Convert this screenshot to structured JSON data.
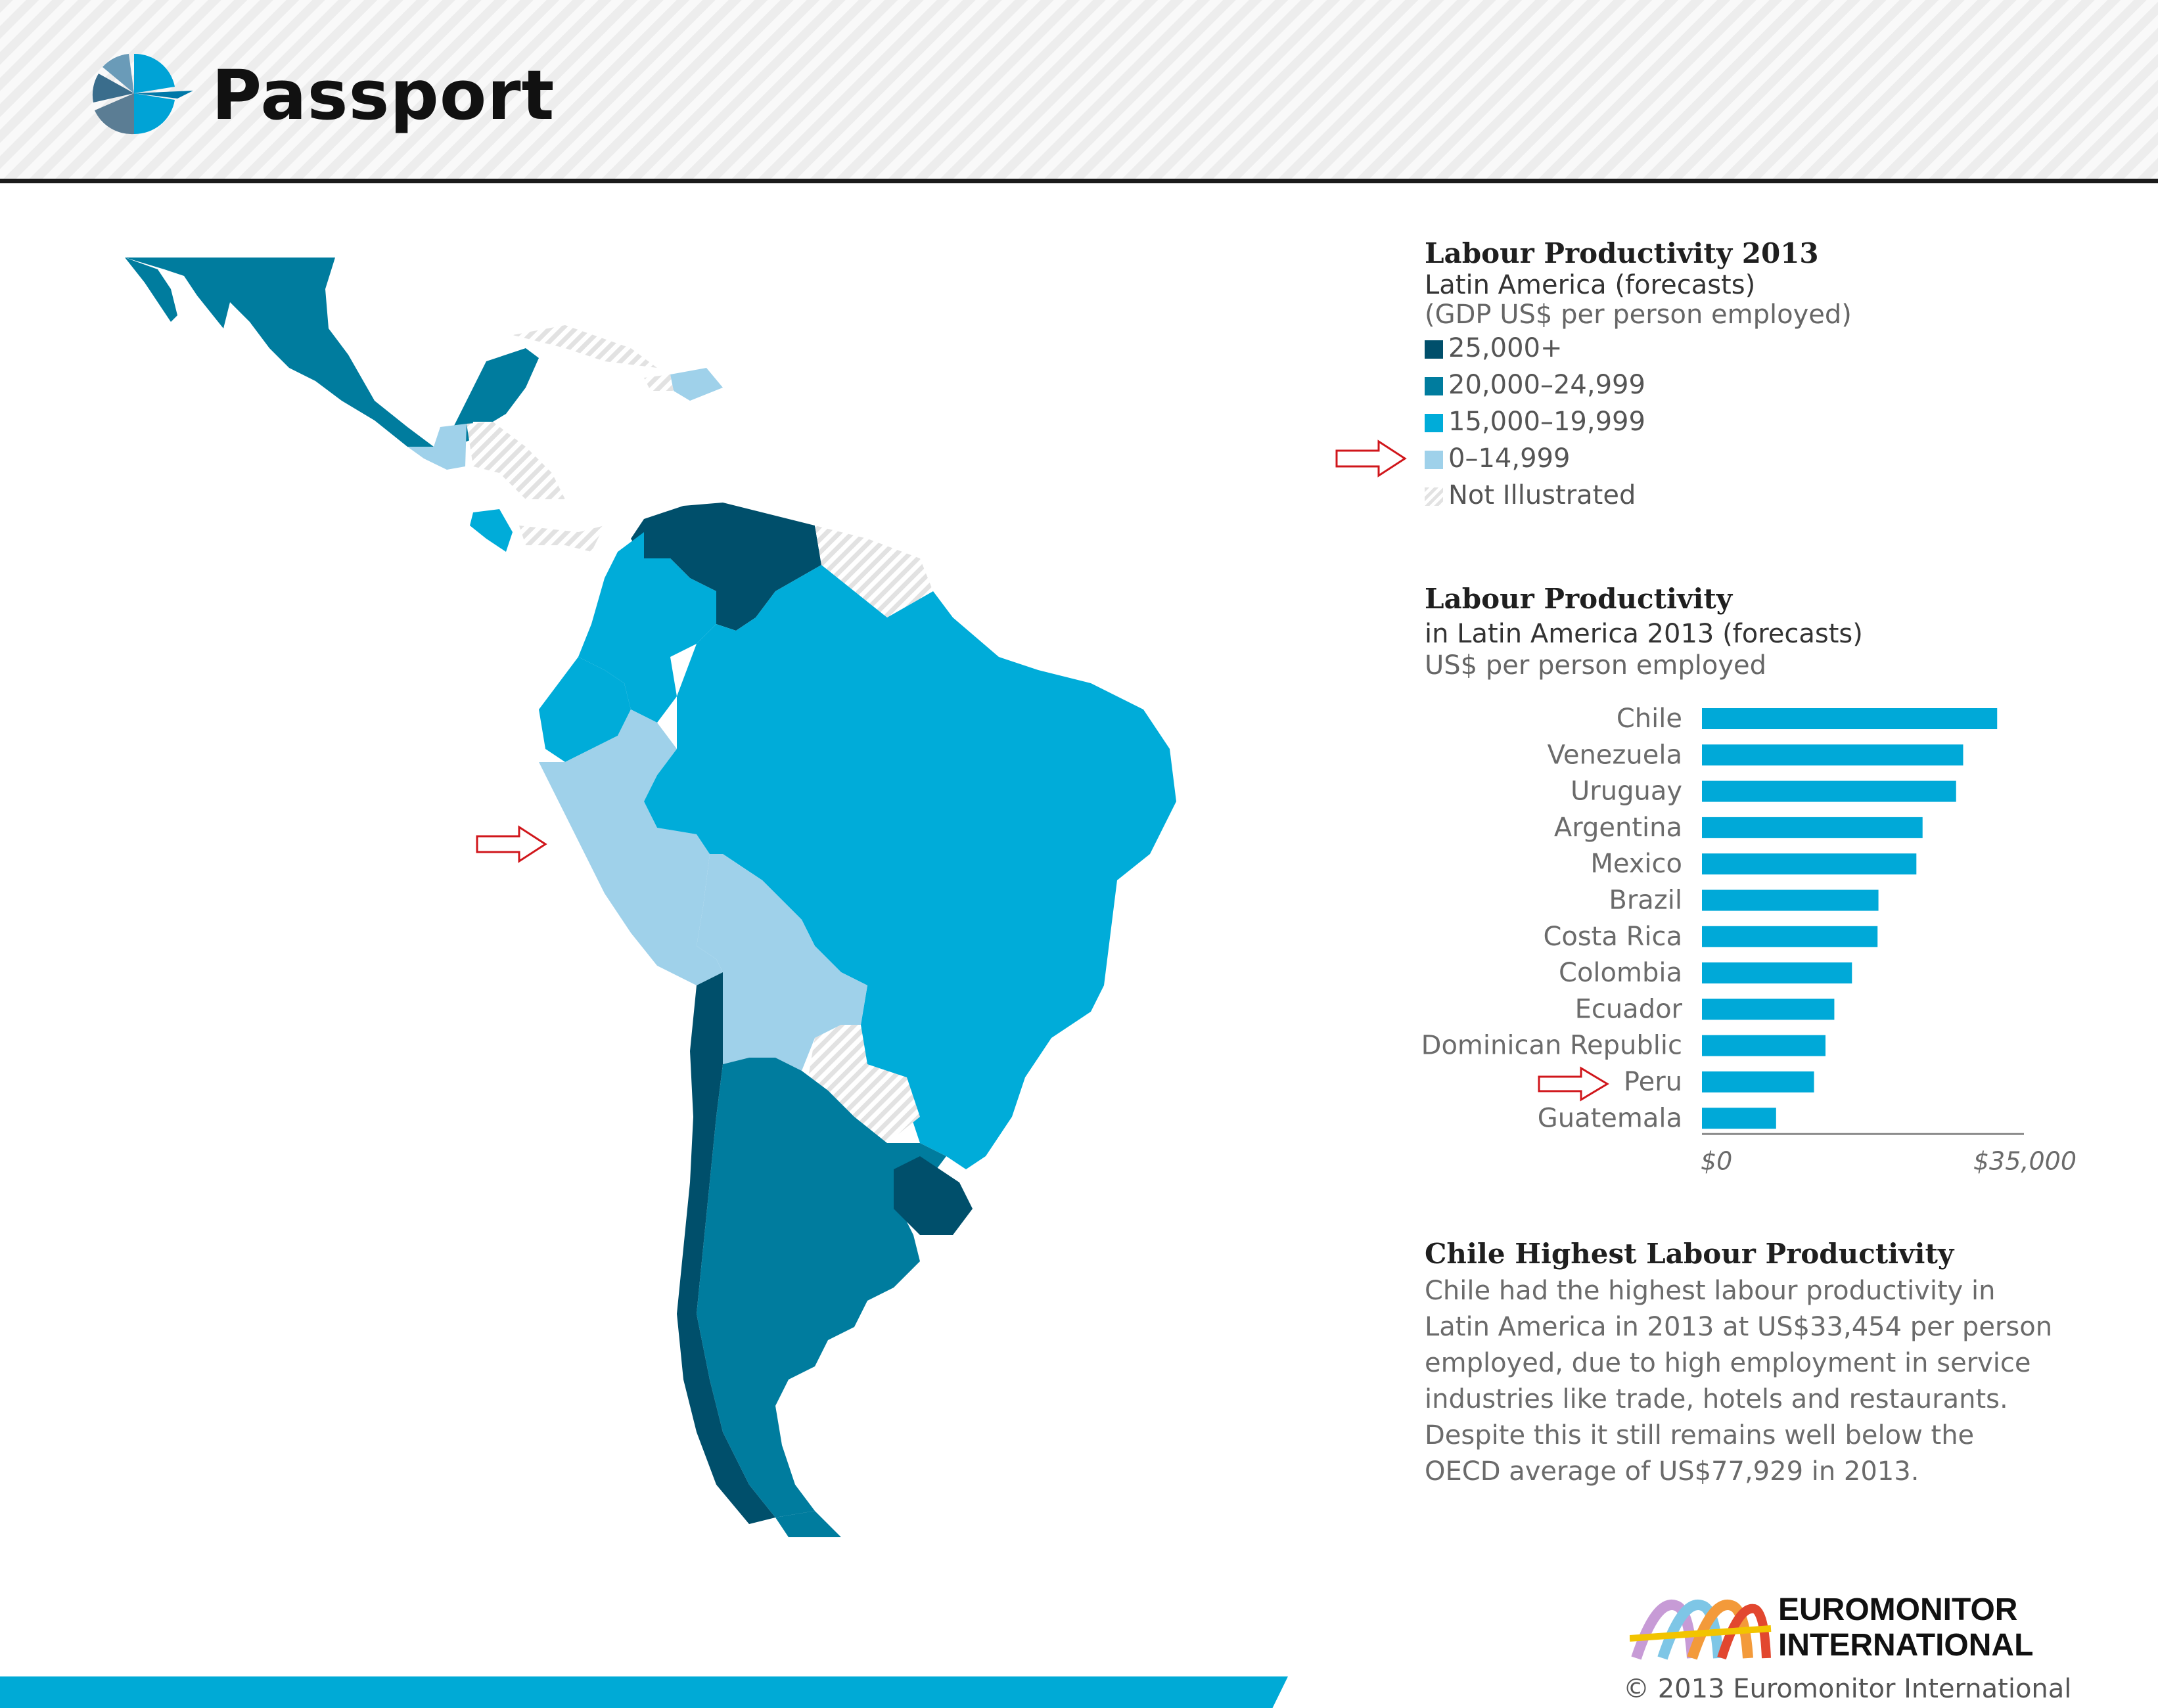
{
  "brand": {
    "name": "Passport"
  },
  "colors": {
    "c25k": "#004f6b",
    "c20k": "#007c9e",
    "c15k": "#00acd9",
    "c0": "#9fd1ea",
    "bar": "#00a9d8",
    "arrow": "#d0161b",
    "accent": "#00aad6"
  },
  "legend": {
    "title": "Labour Productivity 2013",
    "subtitle1": "Latin America (forecasts)",
    "subtitle2": "(GDP US$ per person employed)",
    "items": [
      {
        "label": "25,000+",
        "color": "#004f6b"
      },
      {
        "label": "20,000–24,999",
        "color": "#007c9e"
      },
      {
        "label": "15,000–19,999",
        "color": "#00acd9"
      },
      {
        "label": "0–14,999",
        "color": "#9fd1ea"
      },
      {
        "label": "Not Illustrated",
        "color": "hatched"
      }
    ]
  },
  "chart_data": {
    "type": "bar",
    "orientation": "horizontal",
    "title": "Labour Productivity",
    "subtitle": "in Latin America 2013 (forecasts)",
    "unit_label": "US$ per person employed",
    "categories": [
      "Chile",
      "Venezuela",
      "Uruguay",
      "Argentina",
      "Mexico",
      "Brazil",
      "Costa Rica",
      "Colombia",
      "Ecuador",
      "Dominican Republic",
      "Peru",
      "Guatemala"
    ],
    "values": [
      33454,
      29600,
      28800,
      25000,
      24300,
      20000,
      19900,
      17000,
      15000,
      14000,
      12700,
      8400
    ],
    "xlim": [
      0,
      35000
    ],
    "x_tick_labels": [
      "$0",
      "$35,000"
    ],
    "highlight": "Peru",
    "grid": false
  },
  "note": {
    "title": "Chile Highest Labour Productivity",
    "lines": [
      "Chile had the highest labour productivity in",
      "Latin America in 2013 at US$33,454 per person",
      "employed, due to high employment in service",
      "industries like trade, hotels and restaurants.",
      "Despite this it still remains well below the",
      "OECD average of US$77,929 in 2013."
    ]
  },
  "footer": {
    "company_line1": "EUROMONITOR",
    "company_line2": "INTERNATIONAL",
    "copyright": "© 2013 Euromonitor International"
  }
}
